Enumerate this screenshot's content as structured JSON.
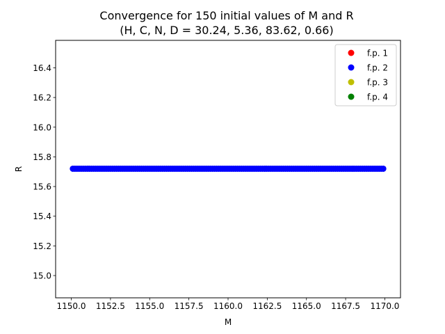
{
  "chart_data": {
    "type": "scatter",
    "title": "Convergence for 150 initial values of M and R",
    "subtitle": "(H, C, N, D = 30.24, 5.36, 83.62, 0.66)",
    "xlabel": "M",
    "ylabel": "R",
    "xlim": [
      1149.0,
      1171.0
    ],
    "ylim": [
      14.85,
      16.585
    ],
    "x_ticks": [
      1150.0,
      1152.5,
      1155.0,
      1157.5,
      1160.0,
      1162.5,
      1165.0,
      1167.5,
      1170.0
    ],
    "x_tick_labels": [
      "1150.0",
      "1152.5",
      "1155.0",
      "1157.5",
      "1160.0",
      "1162.5",
      "1165.0",
      "1167.5",
      "1170.0"
    ],
    "y_ticks": [
      15.0,
      15.2,
      15.4,
      15.6,
      15.8,
      16.0,
      16.2,
      16.4
    ],
    "y_tick_labels": [
      "15.0",
      "15.2",
      "15.4",
      "15.6",
      "15.8",
      "16.0",
      "16.2",
      "16.4"
    ],
    "grid": false,
    "legend_position": "top-right",
    "series": [
      {
        "name": "f.p. 1",
        "color": "#ff0000",
        "x": [],
        "y": []
      },
      {
        "name": "f.p. 2",
        "color": "#0000ff",
        "x_range": [
          1150.1,
          1169.9
        ],
        "count": 150,
        "y_constant": 15.72
      },
      {
        "name": "f.p. 3",
        "color": "#bfbf00",
        "x": [],
        "y": []
      },
      {
        "name": "f.p. 4",
        "color": "#008000",
        "x": [],
        "y": []
      }
    ]
  }
}
